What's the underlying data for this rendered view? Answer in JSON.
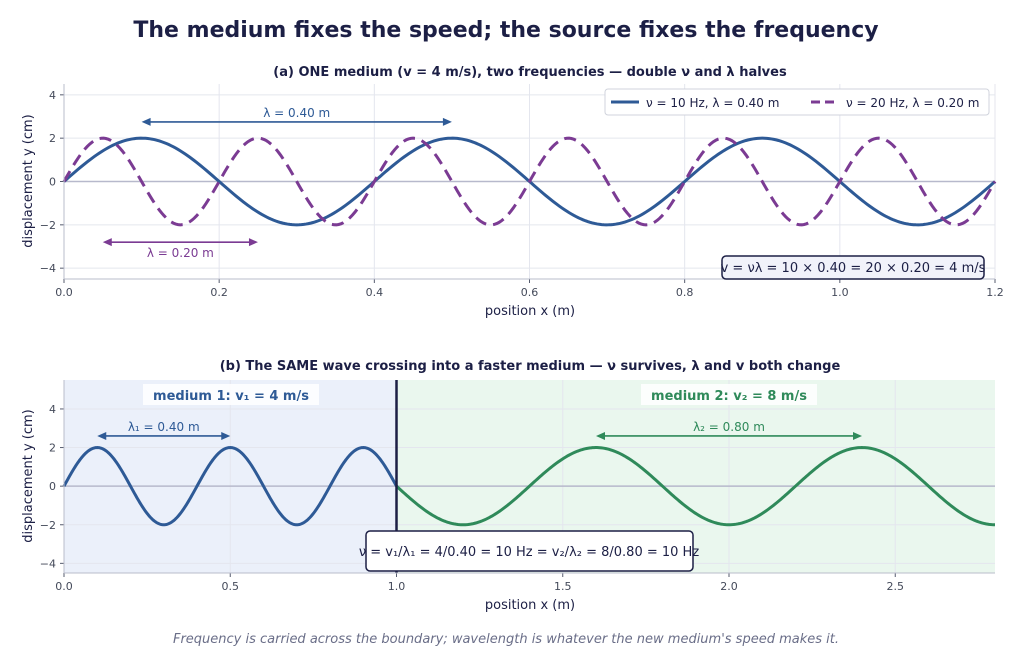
{
  "title": "The medium fixes the speed; the source fixes the frequency",
  "caption": "Frequency is carried across the boundary; wavelength is whatever the new medium's speed makes it.",
  "colors": {
    "blue": "#2e5a96",
    "purple": "#7b3b93",
    "green": "#2f8a5a",
    "dark": "#1c1f45"
  },
  "chart_data": [
    {
      "type": "line",
      "title": "(a)  ONE medium (v = 4 m/s), two frequencies  —  double ν and λ halves",
      "xlabel": "position  x  (m)",
      "ylabel": "displacement  y  (cm)",
      "xlim": [
        0,
        1.2
      ],
      "ylim": [
        -4.5,
        4.5
      ],
      "xticks": [
        "0.0",
        "0.2",
        "0.4",
        "0.6",
        "0.8",
        "1.0",
        "1.2"
      ],
      "yticks": [
        "−4",
        "−2",
        "0",
        "2",
        "4"
      ],
      "grid": true,
      "legend_position": "top-right",
      "series": [
        {
          "name": "ν = 10 Hz,   λ = 0.40 m",
          "amplitude": 2,
          "wavelength": 0.4,
          "style": "solid",
          "color": "#2e5a96"
        },
        {
          "name": "ν = 20 Hz,   λ = 0.20 m",
          "amplitude": 2,
          "wavelength": 0.2,
          "style": "dashed",
          "color": "#7b3b93"
        }
      ],
      "annotations": [
        {
          "text": "λ = 0.40 m",
          "x_start": 0.1,
          "x_end": 0.5,
          "y": 2.75,
          "color": "#2e5a96"
        },
        {
          "text": "λ = 0.20 m",
          "x_start": 0.05,
          "x_end": 0.25,
          "y": -2.8,
          "color": "#7b3b93"
        }
      ],
      "box_text": "v = νλ = 10 × 0.40 = 20 × 0.20 = 4 m/s"
    },
    {
      "type": "line",
      "title": "(b)  The SAME wave crossing into a faster medium  —  ν survives, λ and v both change",
      "xlabel": "position  x  (m)",
      "ylabel": "displacement  y  (cm)",
      "xlim": [
        0,
        2.8
      ],
      "ylim": [
        -4.5,
        5.5
      ],
      "xticks": [
        "0.0",
        "0.5",
        "1.0",
        "1.5",
        "2.0",
        "2.5"
      ],
      "yticks": [
        "−4",
        "−2",
        "0",
        "2",
        "4"
      ],
      "grid": true,
      "boundary_x": 1.0,
      "series": [
        {
          "name": "medium 1",
          "x_range": [
            0,
            1.0
          ],
          "amplitude": 2,
          "wavelength": 0.4,
          "color": "#2e5a96"
        },
        {
          "name": "medium 2",
          "x_range": [
            1.0,
            2.8
          ],
          "amplitude": 2,
          "wavelength": 0.8,
          "color": "#2f8a5a"
        }
      ],
      "medium_labels": [
        {
          "text": "medium 1:   v₁ = 4 m/s",
          "color": "#2e5a96"
        },
        {
          "text": "medium 2:   v₂ = 8 m/s",
          "color": "#2f8a5a"
        }
      ],
      "annotations": [
        {
          "text": "λ₁ = 0.40 m",
          "x_start": 0.1,
          "x_end": 0.5,
          "y": 2.6,
          "color": "#2e5a96"
        },
        {
          "text": "λ₂ = 0.80 m",
          "x_start": 1.6,
          "x_end": 2.4,
          "y": 2.6,
          "color": "#2f8a5a"
        }
      ],
      "box_text": "ν = v₁/λ₁ = 4/0.40 = 10 Hz        = v₂/λ₂ = 8/0.80 = 10 Hz"
    }
  ]
}
